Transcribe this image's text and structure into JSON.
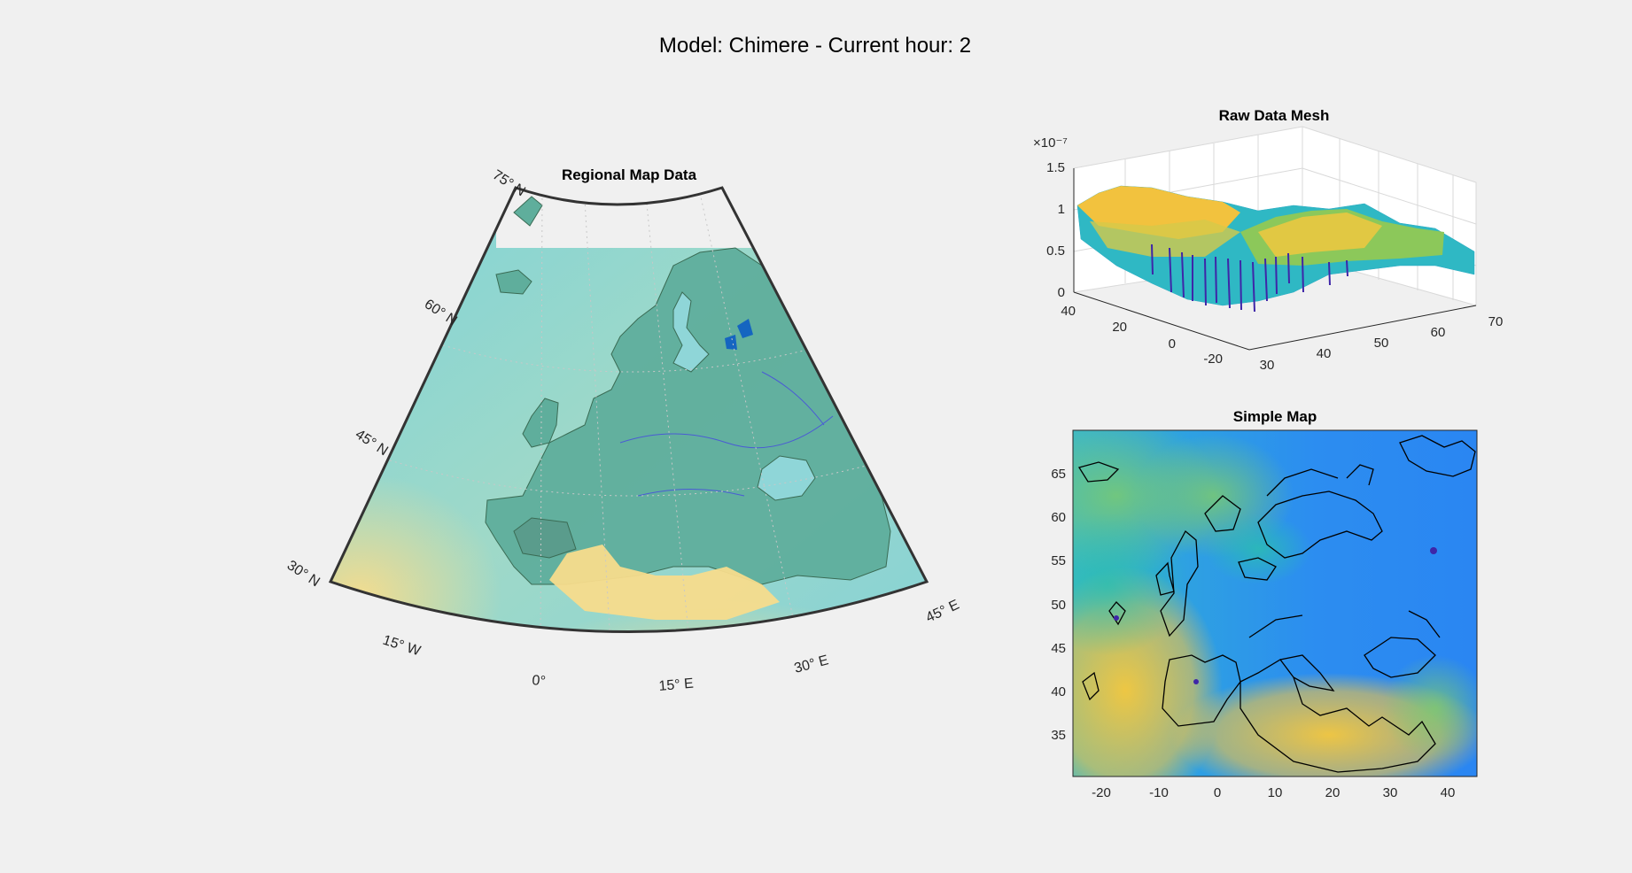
{
  "figure": {
    "title": "Model: Chimere - Current hour: 2",
    "background": "#f0f0f0"
  },
  "colormap": [
    "#3e26a8",
    "#2d6ef5",
    "#14a8da",
    "#26c1a6",
    "#9cc855",
    "#f4bb3a",
    "#f9e14b"
  ],
  "chart_data": [
    {
      "type": "heatmap",
      "subtype": "regional-map",
      "title": "Regional Map Data",
      "projection": "conic",
      "lat_labels": [
        "75° N",
        "60° N",
        "45° N",
        "30° N"
      ],
      "lon_labels": [
        "15° W",
        "0°",
        "15° E",
        "30° E",
        "45° E"
      ],
      "lat_range": [
        30,
        75
      ],
      "lon_range": [
        -25,
        45
      ],
      "colors": {
        "sea": "#8fd6d8",
        "land": "#5fb2a2",
        "warm": "#f7dc8c",
        "coast": "#3a6b54",
        "frame": "#333333"
      }
    },
    {
      "type": "surface",
      "title": "Raw Data Mesh",
      "exponent_label": "×10⁻⁷",
      "z_ticks": [
        "0",
        "0.5",
        "1",
        "1.5"
      ],
      "z_range": [
        0,
        1.5
      ],
      "x_ticks": [
        "30",
        "40",
        "50",
        "60",
        "70"
      ],
      "x_range": [
        30,
        70
      ],
      "y_ticks": [
        "-20",
        "0",
        "20",
        "40"
      ],
      "y_range": [
        -25,
        45
      ],
      "grid": true
    },
    {
      "type": "heatmap",
      "subtype": "simple-map",
      "title": "Simple Map",
      "x_ticks": [
        "-20",
        "-10",
        "0",
        "10",
        "20",
        "30",
        "40"
      ],
      "x_range": [
        -25,
        45
      ],
      "y_ticks": [
        "35",
        "40",
        "45",
        "50",
        "55",
        "60",
        "65"
      ],
      "y_range": [
        30,
        70
      ],
      "coastline_color": "#000000"
    }
  ]
}
